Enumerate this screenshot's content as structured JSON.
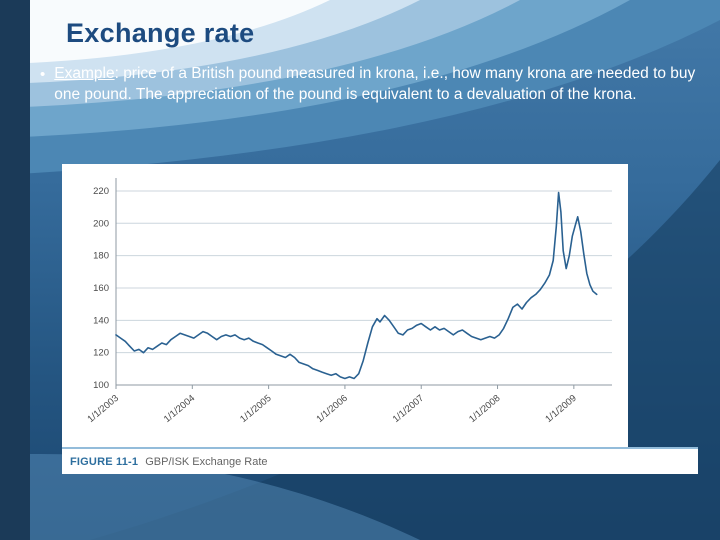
{
  "slide": {
    "title": "Exchange rate",
    "bullet_glyph": "•",
    "bullet": {
      "lead": "Example",
      "rest": ": price of a British pound measured in krona, i.e., how many krona are needed to buy one pound.  The appreciation of the pound is equivalent to a devaluation of the krona."
    }
  },
  "figure": {
    "label": "FIGURE 11-1",
    "caption": "GBP/ISK Exchange Rate"
  },
  "chart_data": {
    "type": "line",
    "title": "GBP/ISK Exchange Rate",
    "xlabel": "",
    "ylabel": "",
    "grid": "horizontal",
    "legend_position": "none",
    "line_color": "#2a6191",
    "xlim": [
      2003,
      2009.5
    ],
    "ylim": [
      100,
      228
    ],
    "y_ticks": [
      100,
      120,
      140,
      160,
      180,
      200,
      220
    ],
    "x_tick_values": [
      2003,
      2004,
      2005,
      2006,
      2007,
      2008,
      2009
    ],
    "x_tick_labels": [
      "1/1/2003",
      "1/1/2004",
      "1/1/2005",
      "1/1/2006",
      "1/1/2007",
      "1/1/2008",
      "1/1/2009"
    ],
    "series_name": "GBP/ISK exchange rate",
    "points": [
      [
        2003.0,
        131
      ],
      [
        2003.06,
        129
      ],
      [
        2003.12,
        127
      ],
      [
        2003.18,
        124
      ],
      [
        2003.24,
        121
      ],
      [
        2003.3,
        122
      ],
      [
        2003.36,
        120
      ],
      [
        2003.42,
        123
      ],
      [
        2003.48,
        122
      ],
      [
        2003.54,
        124
      ],
      [
        2003.6,
        126
      ],
      [
        2003.66,
        125
      ],
      [
        2003.72,
        128
      ],
      [
        2003.78,
        130
      ],
      [
        2003.84,
        132
      ],
      [
        2003.9,
        131
      ],
      [
        2003.96,
        130
      ],
      [
        2004.02,
        129
      ],
      [
        2004.08,
        131
      ],
      [
        2004.14,
        133
      ],
      [
        2004.2,
        132
      ],
      [
        2004.26,
        130
      ],
      [
        2004.32,
        128
      ],
      [
        2004.38,
        130
      ],
      [
        2004.44,
        131
      ],
      [
        2004.5,
        130
      ],
      [
        2004.56,
        131
      ],
      [
        2004.62,
        129
      ],
      [
        2004.68,
        128
      ],
      [
        2004.74,
        129
      ],
      [
        2004.8,
        127
      ],
      [
        2004.86,
        126
      ],
      [
        2004.92,
        125
      ],
      [
        2004.98,
        123
      ],
      [
        2005.04,
        121
      ],
      [
        2005.1,
        119
      ],
      [
        2005.16,
        118
      ],
      [
        2005.22,
        117
      ],
      [
        2005.28,
        119
      ],
      [
        2005.34,
        117
      ],
      [
        2005.4,
        114
      ],
      [
        2005.46,
        113
      ],
      [
        2005.52,
        112
      ],
      [
        2005.58,
        110
      ],
      [
        2005.64,
        109
      ],
      [
        2005.7,
        108
      ],
      [
        2005.76,
        107
      ],
      [
        2005.82,
        106
      ],
      [
        2005.88,
        107
      ],
      [
        2005.94,
        105
      ],
      [
        2006.0,
        104
      ],
      [
        2006.06,
        105
      ],
      [
        2006.12,
        104
      ],
      [
        2006.18,
        107
      ],
      [
        2006.24,
        115
      ],
      [
        2006.3,
        126
      ],
      [
        2006.36,
        136
      ],
      [
        2006.42,
        141
      ],
      [
        2006.46,
        139
      ],
      [
        2006.52,
        143
      ],
      [
        2006.58,
        140
      ],
      [
        2006.64,
        136
      ],
      [
        2006.7,
        132
      ],
      [
        2006.76,
        131
      ],
      [
        2006.82,
        134
      ],
      [
        2006.88,
        135
      ],
      [
        2006.94,
        137
      ],
      [
        2007.0,
        138
      ],
      [
        2007.06,
        136
      ],
      [
        2007.12,
        134
      ],
      [
        2007.18,
        136
      ],
      [
        2007.24,
        134
      ],
      [
        2007.3,
        135
      ],
      [
        2007.36,
        133
      ],
      [
        2007.42,
        131
      ],
      [
        2007.48,
        133
      ],
      [
        2007.54,
        134
      ],
      [
        2007.6,
        132
      ],
      [
        2007.66,
        130
      ],
      [
        2007.72,
        129
      ],
      [
        2007.78,
        128
      ],
      [
        2007.84,
        129
      ],
      [
        2007.9,
        130
      ],
      [
        2007.96,
        129
      ],
      [
        2008.02,
        131
      ],
      [
        2008.08,
        135
      ],
      [
        2008.14,
        141
      ],
      [
        2008.2,
        148
      ],
      [
        2008.26,
        150
      ],
      [
        2008.32,
        147
      ],
      [
        2008.38,
        151
      ],
      [
        2008.44,
        154
      ],
      [
        2008.5,
        156
      ],
      [
        2008.56,
        159
      ],
      [
        2008.62,
        163
      ],
      [
        2008.68,
        168
      ],
      [
        2008.73,
        177
      ],
      [
        2008.77,
        198
      ],
      [
        2008.8,
        219
      ],
      [
        2008.83,
        207
      ],
      [
        2008.86,
        183
      ],
      [
        2008.9,
        172
      ],
      [
        2008.94,
        180
      ],
      [
        2008.98,
        192
      ],
      [
        2009.02,
        199
      ],
      [
        2009.05,
        204
      ],
      [
        2009.09,
        195
      ],
      [
        2009.13,
        181
      ],
      [
        2009.17,
        169
      ],
      [
        2009.21,
        162
      ],
      [
        2009.25,
        158
      ],
      [
        2009.3,
        156
      ]
    ]
  }
}
